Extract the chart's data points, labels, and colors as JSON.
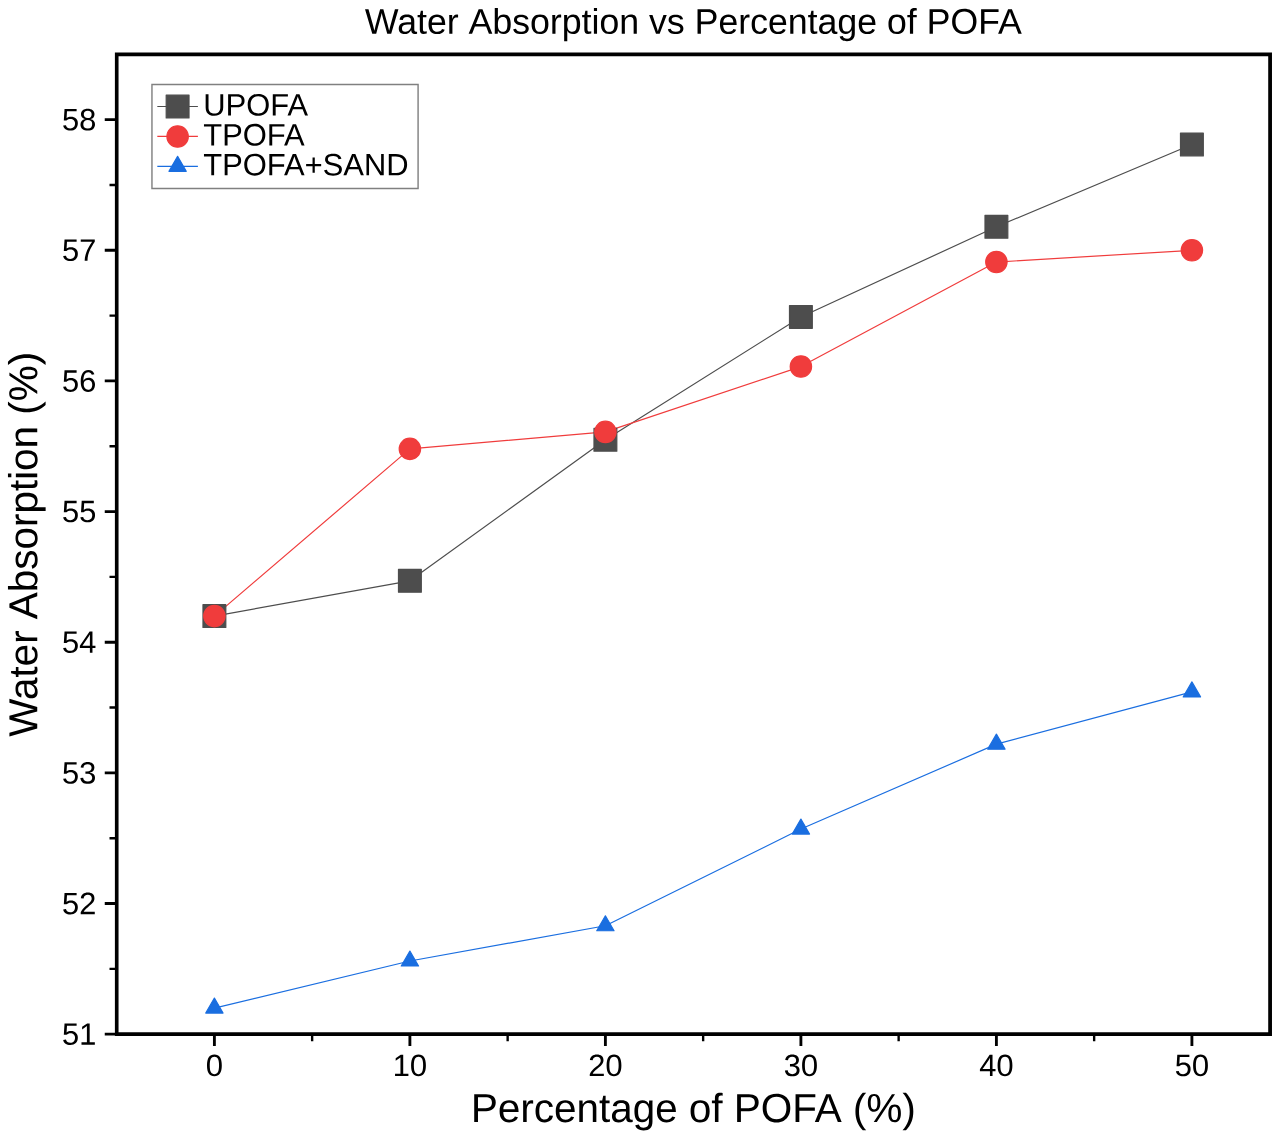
{
  "chart_data": {
    "type": "line",
    "title": "Water Absorption vs Percentage of POFA",
    "xlabel": "Percentage of POFA (%)",
    "ylabel": "Water Absorption (%)",
    "x": [
      0,
      10,
      20,
      30,
      40,
      50
    ],
    "xlim": [
      -5,
      54
    ],
    "xticks": [
      0,
      10,
      20,
      30,
      40,
      50
    ],
    "ylim": [
      51,
      58.5
    ],
    "yticks": [
      51,
      52,
      53,
      54,
      55,
      56,
      57,
      58
    ],
    "legend": "top left",
    "grid": false,
    "series": [
      {
        "name": "UPOFA",
        "color": "#4d4d4d",
        "marker": "square",
        "values": [
          54.2,
          54.47,
          55.55,
          56.49,
          57.18,
          57.81
        ]
      },
      {
        "name": "TPOFA",
        "color": "#f03c3c",
        "marker": "circle",
        "values": [
          54.2,
          55.48,
          55.61,
          56.11,
          56.91,
          57.0
        ]
      },
      {
        "name": "TPOFA+SAND",
        "color": "#1a6ee0",
        "marker": "triangle",
        "values": [
          51.2,
          51.56,
          51.83,
          52.57,
          53.22,
          53.62
        ]
      }
    ]
  }
}
